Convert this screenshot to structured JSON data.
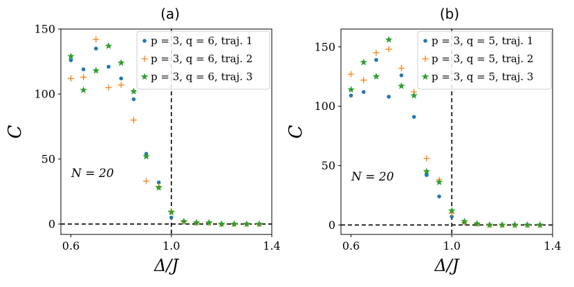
{
  "chart_data": [
    {
      "type": "scatter",
      "title": "(a)",
      "xlabel": "Δ/J",
      "ylabel": "C",
      "xlim": [
        0.56,
        1.4
      ],
      "ylim": [
        -8,
        150
      ],
      "xticks": [
        0.6,
        1.0,
        1.4
      ],
      "xtick_labels": [
        "0.6",
        "1.0",
        "1.4"
      ],
      "yticks": [
        0,
        50,
        100,
        150
      ],
      "ytick_labels": [
        "0",
        "50",
        "100",
        "150"
      ],
      "hline": 0,
      "vline": 1.0,
      "annotation": "N = 20",
      "legend_location": "top-right",
      "series": [
        {
          "name": "p = 3, q = 6, traj. 1",
          "marker": "dot",
          "color": "#1f77b4",
          "x": [
            0.6,
            0.65,
            0.7,
            0.75,
            0.8,
            0.85,
            0.9,
            0.95,
            1.0,
            1.05,
            1.1,
            1.15,
            1.2,
            1.25,
            1.3,
            1.35
          ],
          "y": [
            126,
            119,
            135,
            121,
            112,
            96,
            54,
            32,
            5,
            2,
            1,
            1,
            0,
            0,
            0,
            0
          ]
        },
        {
          "name": "p = 3, q = 6, traj. 2",
          "marker": "plus",
          "color": "#ff7f0e",
          "x": [
            0.6,
            0.65,
            0.7,
            0.75,
            0.8,
            0.85,
            0.9,
            0.95,
            1.0,
            1.05,
            1.1,
            1.15,
            1.2,
            1.25,
            1.3,
            1.35
          ],
          "y": [
            112,
            113,
            142,
            105,
            107,
            80,
            33,
            29,
            10,
            2,
            1,
            1,
            0,
            0,
            0,
            0
          ]
        },
        {
          "name": "p = 3, q = 6, traj. 3",
          "marker": "star",
          "color": "#2ca02c",
          "x": [
            0.6,
            0.65,
            0.7,
            0.75,
            0.8,
            0.85,
            0.9,
            0.95,
            1.0,
            1.05,
            1.1,
            1.15,
            1.2,
            1.25,
            1.3,
            1.35
          ],
          "y": [
            129,
            103,
            118,
            137,
            124,
            102,
            52,
            28,
            9,
            2,
            1,
            1,
            0,
            0,
            0,
            0
          ]
        }
      ]
    },
    {
      "type": "scatter",
      "title": "(b)",
      "xlabel": "Δ/J",
      "ylabel": "C",
      "xlim": [
        0.56,
        1.4
      ],
      "ylim": [
        -8,
        165
      ],
      "xticks": [
        0.6,
        1.0,
        1.4
      ],
      "xtick_labels": [
        "0.6",
        "1.0",
        "1.4"
      ],
      "yticks": [
        0,
        50,
        100,
        150
      ],
      "ytick_labels": [
        "0",
        "50",
        "100",
        "150"
      ],
      "hline": 0,
      "vline": 1.0,
      "annotation": "N = 20",
      "legend_location": "top-right",
      "series": [
        {
          "name": "p = 3, q = 5, traj. 1",
          "marker": "dot",
          "color": "#1f77b4",
          "x": [
            0.6,
            0.65,
            0.7,
            0.75,
            0.8,
            0.85,
            0.9,
            0.95,
            1.0,
            1.05,
            1.1,
            1.15,
            1.2,
            1.25,
            1.3,
            1.35
          ],
          "y": [
            109,
            112,
            139,
            108,
            126,
            91,
            42,
            24,
            7,
            2,
            1,
            0,
            0,
            0,
            0,
            0
          ]
        },
        {
          "name": "p = 3, q = 5, traj. 2",
          "marker": "plus",
          "color": "#ff7f0e",
          "x": [
            0.6,
            0.65,
            0.7,
            0.75,
            0.8,
            0.85,
            0.9,
            0.95,
            1.0,
            1.05,
            1.1,
            1.15,
            1.2,
            1.25,
            1.3,
            1.35
          ],
          "y": [
            127,
            122,
            145,
            148,
            132,
            112,
            56,
            38,
            10,
            2,
            1,
            0,
            0,
            0,
            0,
            0
          ]
        },
        {
          "name": "p = 3, q = 5, traj. 3",
          "marker": "star",
          "color": "#2ca02c",
          "x": [
            0.6,
            0.65,
            0.7,
            0.75,
            0.8,
            0.85,
            0.9,
            0.95,
            1.0,
            1.05,
            1.1,
            1.15,
            1.2,
            1.25,
            1.3,
            1.35
          ],
          "y": [
            114,
            137,
            125,
            156,
            117,
            109,
            45,
            36,
            12,
            3,
            1,
            0,
            0,
            0,
            0,
            0
          ]
        }
      ]
    }
  ]
}
